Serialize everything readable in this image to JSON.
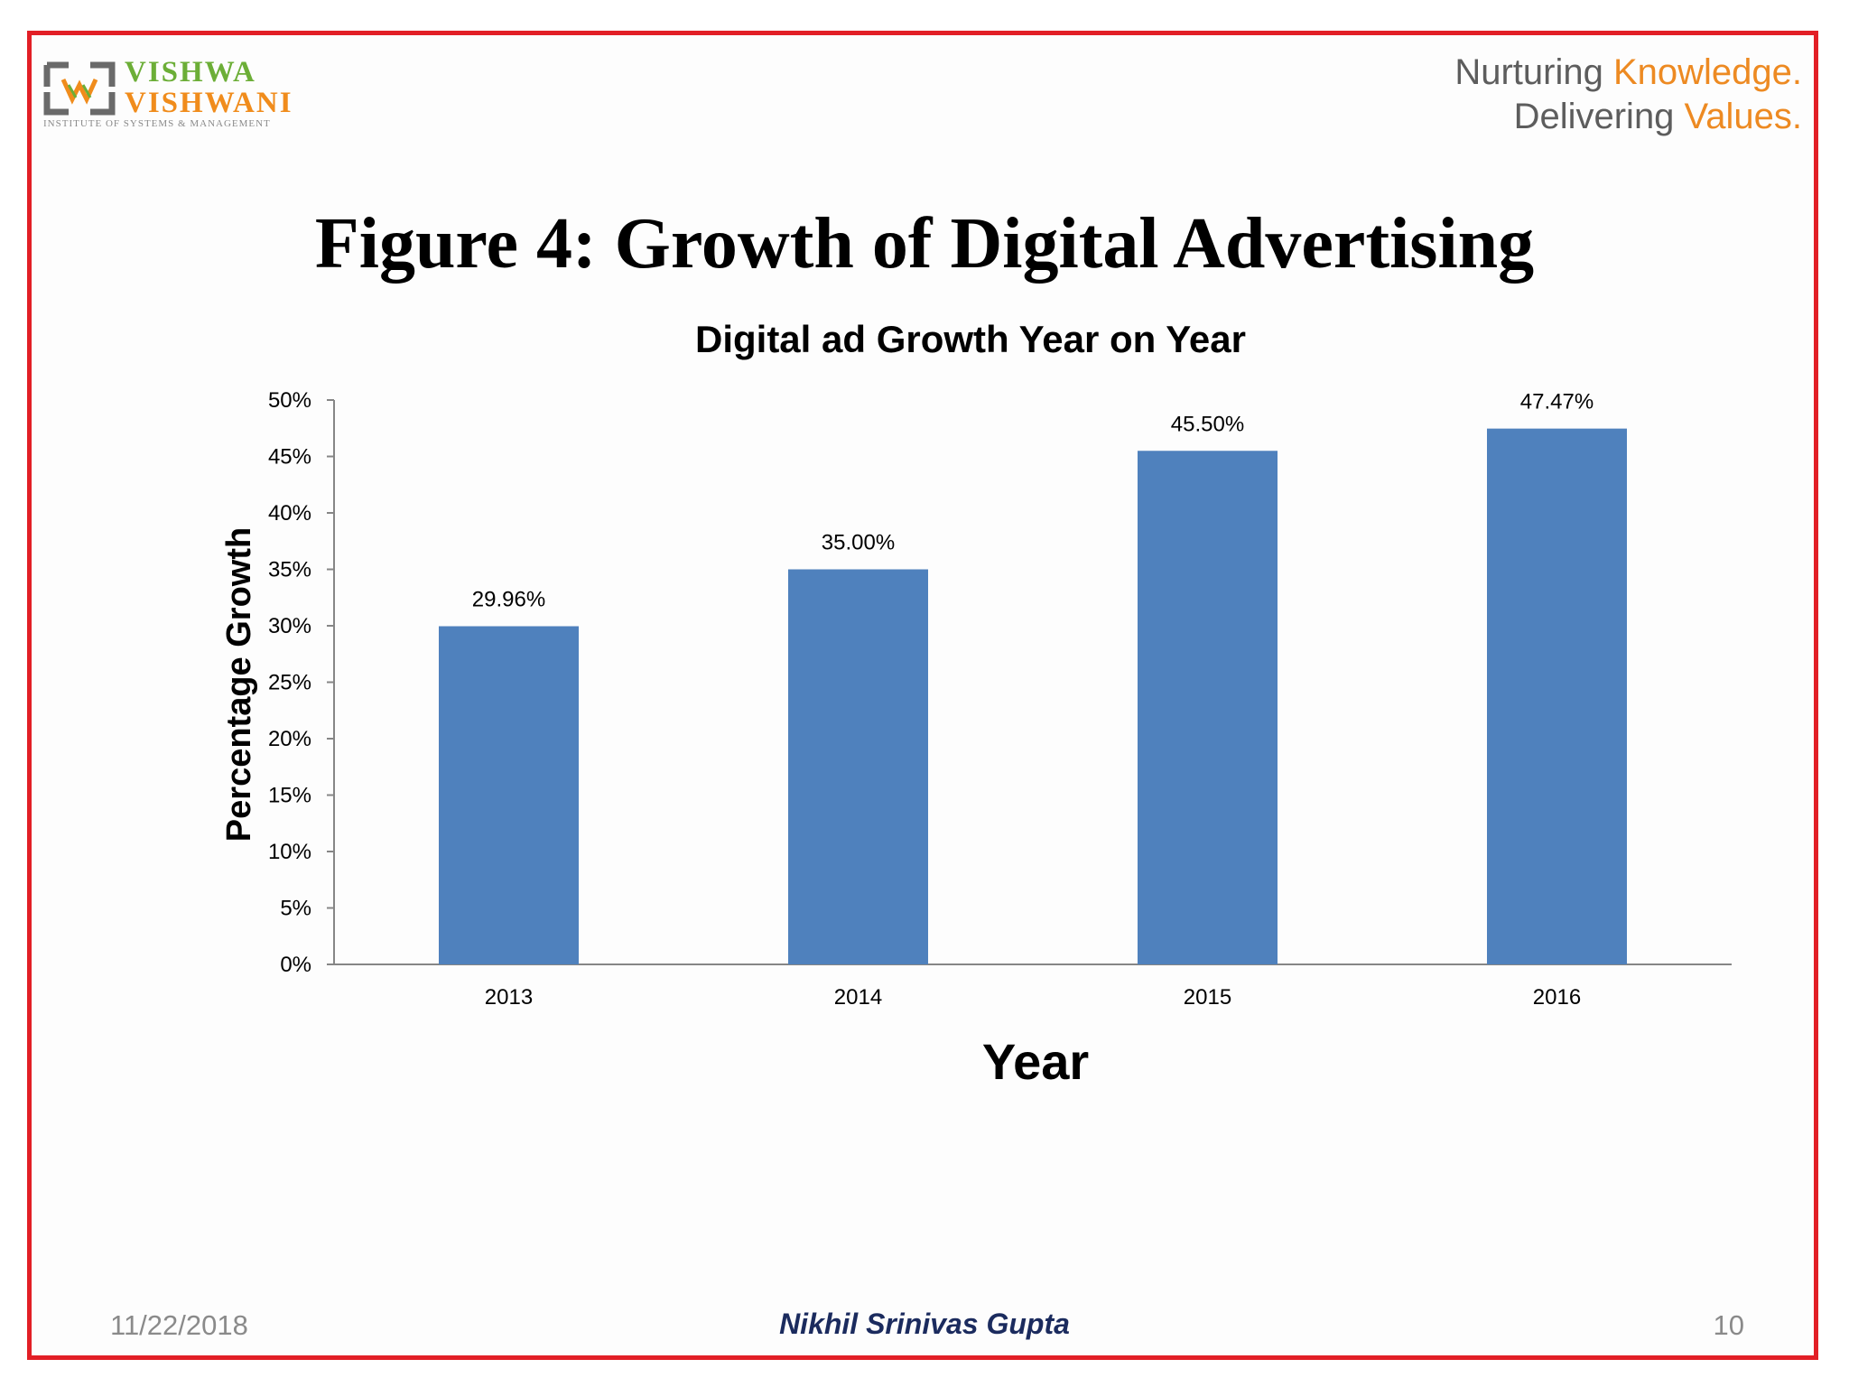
{
  "header": {
    "logo_line1": "VISHWA",
    "logo_line2": "VISHWANI",
    "logo_tagline": "INSTITUTE OF SYSTEMS & MANAGEMENT",
    "motto_line1_a": "Nurturing ",
    "motto_line1_b": "Knowledge.",
    "motto_line2_a": "Delivering ",
    "motto_line2_b": "Values."
  },
  "slide_title": "Figure 4: Growth of Digital Advertising",
  "chart_data": {
    "type": "bar",
    "title": "Digital ad Growth Year on Year",
    "xlabel": "Year",
    "ylabel": "Percentage Growth",
    "categories": [
      "2013",
      "2014",
      "2015",
      "2016"
    ],
    "values": [
      29.96,
      35.0,
      45.5,
      47.47
    ],
    "data_labels": [
      "29.96%",
      "35.00%",
      "45.50%",
      "47.47%"
    ],
    "ylim": [
      0,
      50
    ],
    "yticks": [
      0,
      5,
      10,
      15,
      20,
      25,
      30,
      35,
      40,
      45,
      50
    ],
    "ytick_labels": [
      "0%",
      "5%",
      "10%",
      "15%",
      "20%",
      "25%",
      "30%",
      "35%",
      "40%",
      "45%",
      "50%"
    ],
    "grid": false,
    "legend": "none",
    "bar_color": "#4f81bd"
  },
  "footer": {
    "date": "11/22/2018",
    "author": "Nikhil Srinivas Gupta",
    "page": "10"
  },
  "colors": {
    "frame": "#e21f26",
    "logo_green": "#6cae37",
    "logo_orange": "#f08c1c",
    "author_navy": "#1b2b5e"
  }
}
